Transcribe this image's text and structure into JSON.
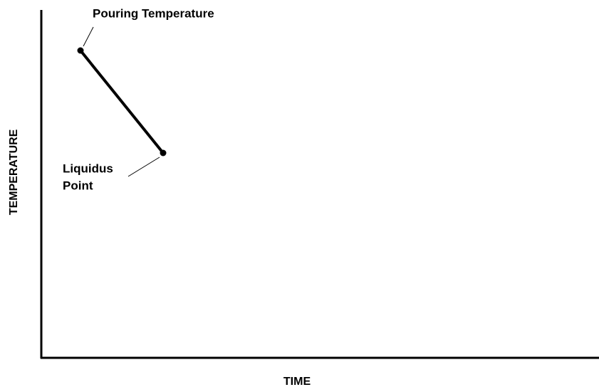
{
  "axes": {
    "x_label": "TIME",
    "y_label": "TEMPERATURE"
  },
  "annotations": [
    {
      "lines": [
        "Pouring Temperature"
      ]
    },
    {
      "lines": [
        "Liquidus",
        "Point"
      ]
    }
  ]
}
